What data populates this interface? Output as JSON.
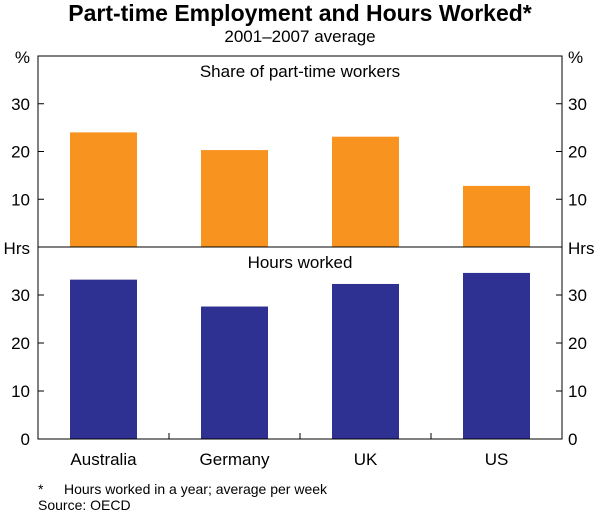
{
  "title": "Part-time Employment and Hours Worked*",
  "subtitle": "2001–2007 average",
  "colors": {
    "top_bars": "#F7931E",
    "bottom_bars": "#2E3192",
    "frame": "#000000"
  },
  "chart_data": [
    {
      "type": "bar",
      "title": "Share of part-time workers",
      "unit": "%",
      "categories": [
        "Australia",
        "Germany",
        "UK",
        "US"
      ],
      "values": [
        24,
        20.3,
        23.1,
        12.8
      ],
      "ylim": [
        0,
        40
      ],
      "yticks": [
        10,
        20,
        30
      ],
      "ytick_labels": [
        "10",
        "20",
        "30"
      ],
      "grid": false,
      "color": "#F7931E"
    },
    {
      "type": "bar",
      "title": "Hours worked",
      "unit": "Hrs",
      "categories": [
        "Australia",
        "Germany",
        "UK",
        "US"
      ],
      "values": [
        33.2,
        27.6,
        32.3,
        34.6
      ],
      "ylim": [
        0,
        40
      ],
      "yticks": [
        0,
        10,
        20,
        30
      ],
      "ytick_labels": [
        "0",
        "10",
        "20",
        "30"
      ],
      "grid": false,
      "color": "#2E3192"
    }
  ],
  "footnotes": {
    "marker": "*",
    "note": "Hours worked in a year; average per week",
    "source": "Source: OECD"
  }
}
